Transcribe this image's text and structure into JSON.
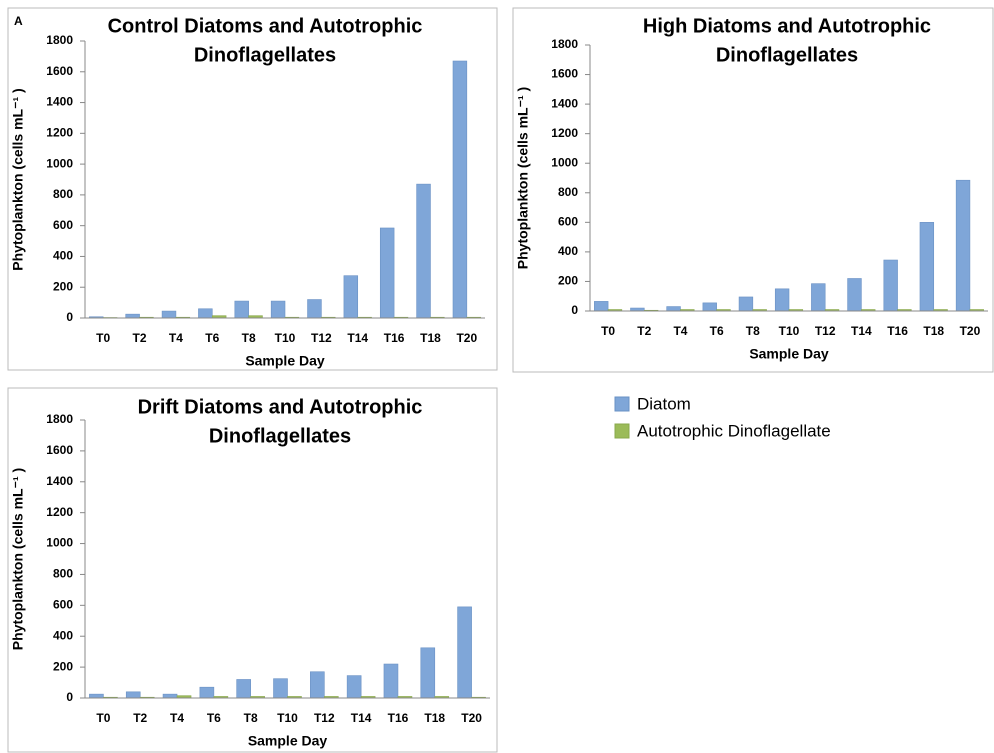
{
  "chart_data": [
    {
      "type": "bar",
      "panel_label": "A",
      "title": [
        "Control Diatoms and Autotrophic",
        "Dinoflagellates"
      ],
      "y_label": "Phytoplankton (cells mL⁻¹ )",
      "x_label": "Sample Day",
      "categories": [
        "T0",
        "T2",
        "T4",
        "T6",
        "T8",
        "T10",
        "T12",
        "T14",
        "T16",
        "T18",
        "T20"
      ],
      "series": [
        {
          "name": "Diatom",
          "color": "#7fa6d8",
          "values": [
            8,
            25,
            45,
            60,
            110,
            110,
            120,
            275,
            585,
            870,
            1670
          ]
        },
        {
          "name": "Autotrophic Dinoflagellate",
          "color": "#9bbb59",
          "values": [
            3,
            5,
            5,
            15,
            15,
            5,
            5,
            5,
            5,
            5,
            5
          ]
        }
      ],
      "ylim": [
        0,
        1800
      ],
      "yticks": [
        0,
        200,
        400,
        600,
        800,
        1000,
        1200,
        1400,
        1600,
        1800
      ]
    },
    {
      "type": "bar",
      "title": [
        "High Diatoms and Autotrophic",
        "Dinoflagellates"
      ],
      "y_label": "Phytoplankton (cells mL⁻¹ )",
      "x_label": "Sample Day",
      "categories": [
        "T0",
        "T2",
        "T4",
        "T6",
        "T8",
        "T10",
        "T12",
        "T14",
        "T16",
        "T18",
        "T20"
      ],
      "series": [
        {
          "color": "#7fa6d8",
          "values": [
            65,
            20,
            30,
            55,
            95,
            150,
            185,
            220,
            345,
            600,
            885
          ]
        },
        {
          "color": "#9bbb59",
          "values": [
            10,
            5,
            10,
            10,
            10,
            10,
            10,
            10,
            10,
            10,
            10
          ]
        }
      ],
      "ylim": [
        0,
        1800
      ],
      "yticks": [
        0,
        200,
        400,
        600,
        800,
        1000,
        1200,
        1400,
        1600,
        1800
      ]
    },
    {
      "type": "bar",
      "title": [
        "Drift Diatoms and Autotrophic",
        "Dinoflagellates"
      ],
      "y_label": "Phytoplankton (cells mL⁻¹ )",
      "x_label": "Sample Day",
      "categories": [
        "T0",
        "T2",
        "T4",
        "T6",
        "T8",
        "T10",
        "T12",
        "T14",
        "T16",
        "T18",
        "T20"
      ],
      "series": [
        {
          "color": "#7fa6d8",
          "values": [
            25,
            40,
            25,
            70,
            120,
            125,
            170,
            145,
            220,
            325,
            590
          ]
        },
        {
          "color": "#9bbb59",
          "values": [
            5,
            5,
            15,
            10,
            10,
            10,
            10,
            10,
            10,
            10,
            5
          ]
        }
      ],
      "ylim": [
        0,
        1800
      ],
      "yticks": [
        0,
        200,
        400,
        600,
        800,
        1000,
        1200,
        1400,
        1600,
        1800
      ]
    }
  ]
}
